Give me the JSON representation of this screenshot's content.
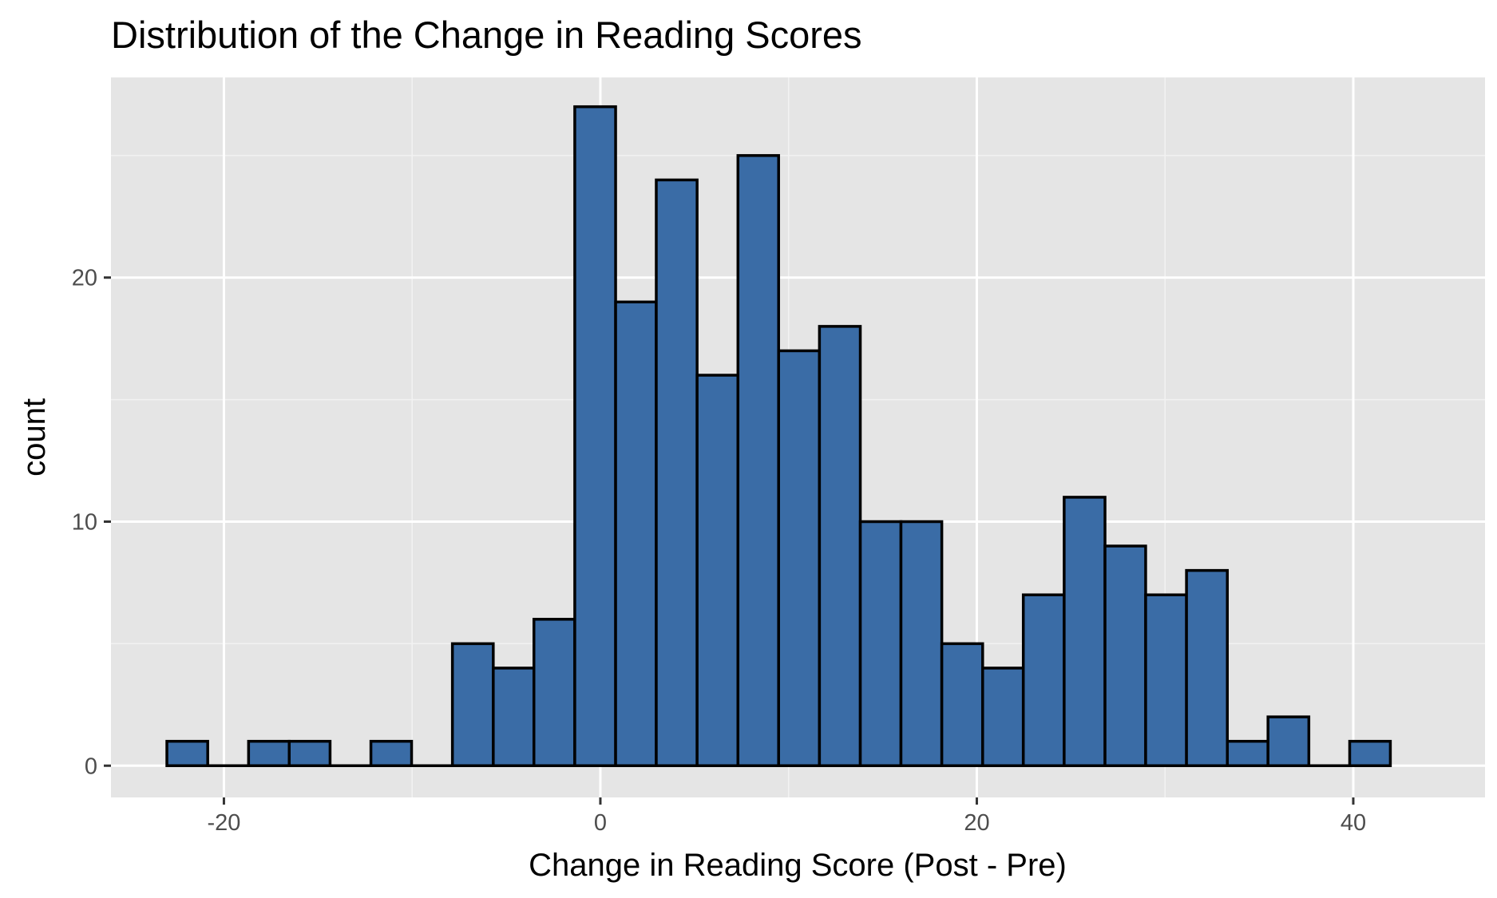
{
  "chart_data": {
    "type": "bar",
    "subtype": "histogram",
    "title": "Distribution of the Change in Reading Scores",
    "xlabel": "Change in Reading Score (Post - Pre)",
    "ylabel": "count",
    "xlim": [
      -26,
      47
    ],
    "ylim": [
      -1.3,
      28.2
    ],
    "x_ticks": [
      -20,
      0,
      20,
      40
    ],
    "x_tick_labels": [
      "-20",
      "0",
      "20",
      "40"
    ],
    "y_ticks": [
      0,
      10,
      20
    ],
    "y_tick_labels": [
      "0",
      "10",
      "20"
    ],
    "grid": true,
    "legend": "none",
    "bin_width": 2.167,
    "bins": [
      {
        "x0": -23.03,
        "x1": -20.86,
        "count": 1
      },
      {
        "x0": -20.86,
        "x1": -18.69,
        "count": 0
      },
      {
        "x0": -18.69,
        "x1": -16.53,
        "count": 1
      },
      {
        "x0": -16.53,
        "x1": -14.36,
        "count": 1
      },
      {
        "x0": -14.36,
        "x1": -12.19,
        "count": 0
      },
      {
        "x0": -12.19,
        "x1": -10.03,
        "count": 1
      },
      {
        "x0": -10.03,
        "x1": -7.86,
        "count": 0
      },
      {
        "x0": -7.86,
        "x1": -5.69,
        "count": 5
      },
      {
        "x0": -5.69,
        "x1": -3.53,
        "count": 4
      },
      {
        "x0": -3.53,
        "x1": -1.36,
        "count": 6
      },
      {
        "x0": -1.36,
        "x1": 0.81,
        "count": 27
      },
      {
        "x0": 0.81,
        "x1": 2.97,
        "count": 19
      },
      {
        "x0": 2.97,
        "x1": 5.14,
        "count": 24
      },
      {
        "x0": 5.14,
        "x1": 7.31,
        "count": 16
      },
      {
        "x0": 7.31,
        "x1": 9.47,
        "count": 25
      },
      {
        "x0": 9.47,
        "x1": 11.64,
        "count": 17
      },
      {
        "x0": 11.64,
        "x1": 13.81,
        "count": 18
      },
      {
        "x0": 13.81,
        "x1": 15.97,
        "count": 10
      },
      {
        "x0": 15.97,
        "x1": 18.14,
        "count": 10
      },
      {
        "x0": 18.14,
        "x1": 20.31,
        "count": 5
      },
      {
        "x0": 20.31,
        "x1": 22.47,
        "count": 4
      },
      {
        "x0": 22.47,
        "x1": 24.64,
        "count": 7
      },
      {
        "x0": 24.64,
        "x1": 26.81,
        "count": 11
      },
      {
        "x0": 26.81,
        "x1": 28.97,
        "count": 9
      },
      {
        "x0": 28.97,
        "x1": 31.14,
        "count": 7
      },
      {
        "x0": 31.14,
        "x1": 33.31,
        "count": 8
      },
      {
        "x0": 33.31,
        "x1": 35.47,
        "count": 1
      },
      {
        "x0": 35.47,
        "x1": 37.64,
        "count": 2
      },
      {
        "x0": 37.64,
        "x1": 39.81,
        "count": 0
      },
      {
        "x0": 39.81,
        "x1": 41.97,
        "count": 1
      }
    ],
    "colors": {
      "bar_fill": "#3A6CA6",
      "bar_outline": "#000000",
      "panel_background": "#E5E5E5",
      "grid_major": "#FFFFFF",
      "grid_minor": "#F2F2F2",
      "tick_label": "#4D4D4D",
      "tick_mark": "#333333"
    }
  }
}
